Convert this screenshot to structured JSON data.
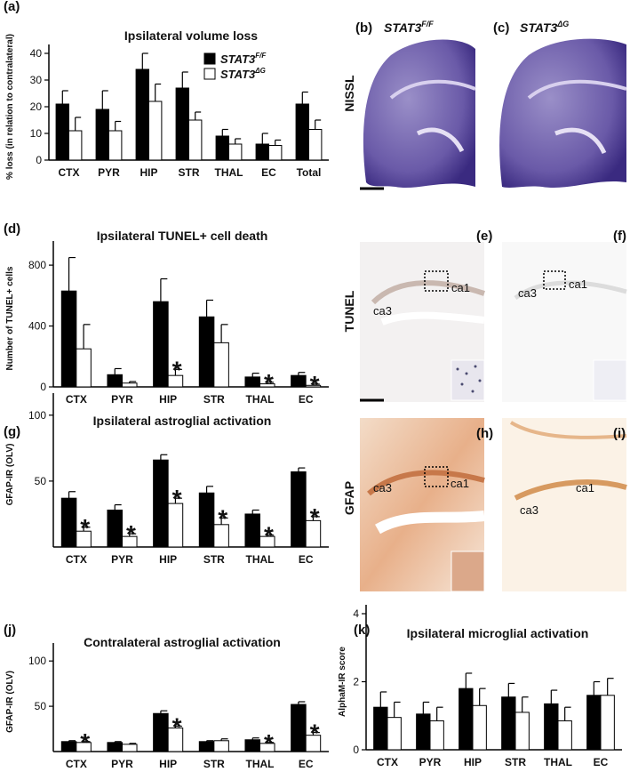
{
  "chart_data": [
    {
      "type": "bar",
      "label": "(a)",
      "title": "Ipsilateral volume loss",
      "ylabel": "% loss (in relation to contralateral)",
      "categories": [
        "CTX",
        "PYR",
        "HIP",
        "STR",
        "THAL",
        "EC",
        "Total"
      ],
      "series": [
        {
          "name": "STAT3",
          "name_superscript": "F/F",
          "color": "#000000",
          "values": [
            21,
            19,
            34,
            27,
            9,
            6,
            21
          ],
          "errors": [
            5,
            7,
            6,
            6,
            2.5,
            4,
            4.5
          ]
        },
        {
          "name": "STAT3",
          "name_superscript": "ΔG",
          "color": "#ffffff",
          "values": [
            11,
            11,
            22,
            15,
            6,
            5.5,
            11.5
          ],
          "errors": [
            5,
            3.5,
            6.5,
            3,
            2,
            2,
            3.5
          ]
        }
      ],
      "ylim": [
        0,
        40
      ],
      "yticks": [
        0,
        10,
        20,
        30,
        40
      ],
      "legend": "upper right"
    },
    {
      "type": "bar",
      "label": "(d)",
      "title": "Ipsilateral TUNEL+ cell death",
      "ylabel": "Number of TUNEL+ cells",
      "categories": [
        "CTX",
        "PYR",
        "HIP",
        "STR",
        "THAL",
        "EC"
      ],
      "series": [
        {
          "color": "#000000",
          "values": [
            630,
            80,
            560,
            460,
            65,
            75
          ],
          "errors": [
            220,
            40,
            150,
            110,
            25,
            20
          ]
        },
        {
          "color": "#ffffff",
          "values": [
            250,
            25,
            75,
            290,
            20,
            10
          ],
          "errors": [
            160,
            10,
            40,
            120,
            10,
            8
          ]
        }
      ],
      "significance": [
        null,
        null,
        "*",
        null,
        "*",
        "*"
      ],
      "ylim": [
        0,
        900
      ],
      "yticks": [
        0,
        400,
        800
      ]
    },
    {
      "type": "bar",
      "label": "(g)",
      "title": "Ipsilateral astroglial activation",
      "ylabel": "GFAP-IR (OLV)",
      "categories": [
        "CTX",
        "PYR",
        "HIP",
        "STR",
        "THAL",
        "EC"
      ],
      "series": [
        {
          "color": "#000000",
          "values": [
            37,
            28,
            66,
            41,
            25,
            57
          ],
          "errors": [
            5,
            4,
            4,
            5,
            3,
            3
          ]
        },
        {
          "color": "#ffffff",
          "values": [
            12,
            8,
            33,
            17,
            8,
            20
          ],
          "errors": [
            3,
            2,
            4,
            5,
            1,
            3
          ]
        }
      ],
      "significance": [
        "*",
        "*",
        "*",
        "*",
        "*",
        "*"
      ],
      "ylim": [
        0,
        110
      ],
      "yticks": [
        50,
        100
      ]
    },
    {
      "type": "bar",
      "label": "(j)",
      "title": "Contralateral astroglial activation",
      "ylabel": "GFAP-IR (OLV)",
      "categories": [
        "CTX",
        "PYR",
        "HIP",
        "STR",
        "THAL",
        "EC"
      ],
      "series": [
        {
          "color": "#000000",
          "values": [
            11,
            10,
            42,
            11,
            13,
            52
          ],
          "errors": [
            1,
            1,
            3,
            1,
            2,
            3
          ]
        },
        {
          "color": "#ffffff",
          "values": [
            10,
            8,
            26,
            12,
            9,
            18
          ],
          "errors": [
            1,
            1,
            2,
            2,
            1,
            3
          ]
        }
      ],
      "significance": [
        "*",
        null,
        "*",
        null,
        "*",
        "*"
      ],
      "ylim": [
        0,
        110
      ],
      "yticks": [
        50,
        100
      ]
    },
    {
      "type": "bar",
      "label": "(k)",
      "title": "Ipsilateral microglial activation",
      "ylabel": "AlphaM-IR score",
      "categories": [
        "CTX",
        "PYR",
        "HIP",
        "STR",
        "THAL",
        "EC"
      ],
      "series": [
        {
          "color": "#000000",
          "values": [
            1.25,
            1.05,
            1.8,
            1.55,
            1.35,
            1.6
          ],
          "errors": [
            0.45,
            0.35,
            0.45,
            0.4,
            0.4,
            0.4
          ]
        },
        {
          "color": "#ffffff",
          "values": [
            0.95,
            0.85,
            1.3,
            1.1,
            0.85,
            1.6
          ],
          "errors": [
            0.45,
            0.4,
            0.5,
            0.45,
            0.4,
            0.5
          ]
        }
      ],
      "ylim": [
        0,
        4
      ],
      "yticks": [
        0,
        2,
        4
      ]
    }
  ],
  "image_panels": {
    "row_labels": [
      "NISSL",
      "TUNEL",
      "GFAP"
    ],
    "panels": [
      {
        "label": "(b)",
        "title": "STAT3",
        "title_superscript": "F/F"
      },
      {
        "label": "(c)",
        "title": "STAT3",
        "title_superscript": "ΔG"
      },
      {
        "label": "(e)",
        "regions": [
          "ca3",
          "ca1"
        ]
      },
      {
        "label": "(f)",
        "regions": [
          "ca3",
          "ca1"
        ]
      },
      {
        "label": "(h)",
        "regions": [
          "ca3",
          "ca1"
        ]
      },
      {
        "label": "(i)",
        "regions": [
          "ca3",
          "ca1"
        ]
      }
    ]
  }
}
